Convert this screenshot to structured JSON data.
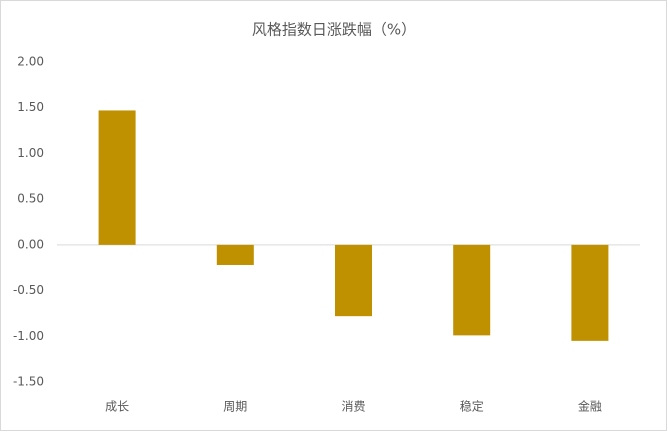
{
  "chart_data": {
    "type": "bar",
    "title": "风格指数日涨跌幅（%）",
    "categories": [
      "成长",
      "周期",
      "消费",
      "稳定",
      "金融"
    ],
    "values": [
      1.47,
      -0.22,
      -0.78,
      -0.99,
      -1.05
    ],
    "color": "#bf9000",
    "ylim": [
      -1.5,
      2.0
    ],
    "yticks": [
      {
        "value": -1.5,
        "label": "-1.50"
      },
      {
        "value": -1.0,
        "label": "-1.00"
      },
      {
        "value": -0.5,
        "label": "-0.50"
      },
      {
        "value": 0,
        "label": "0.00"
      },
      {
        "value": 0.5,
        "label": "0.50"
      },
      {
        "value": 1.0,
        "label": "1.00"
      },
      {
        "value": 1.5,
        "label": "1.50"
      },
      {
        "value": 2.0,
        "label": "2.00"
      }
    ],
    "grid": false
  }
}
